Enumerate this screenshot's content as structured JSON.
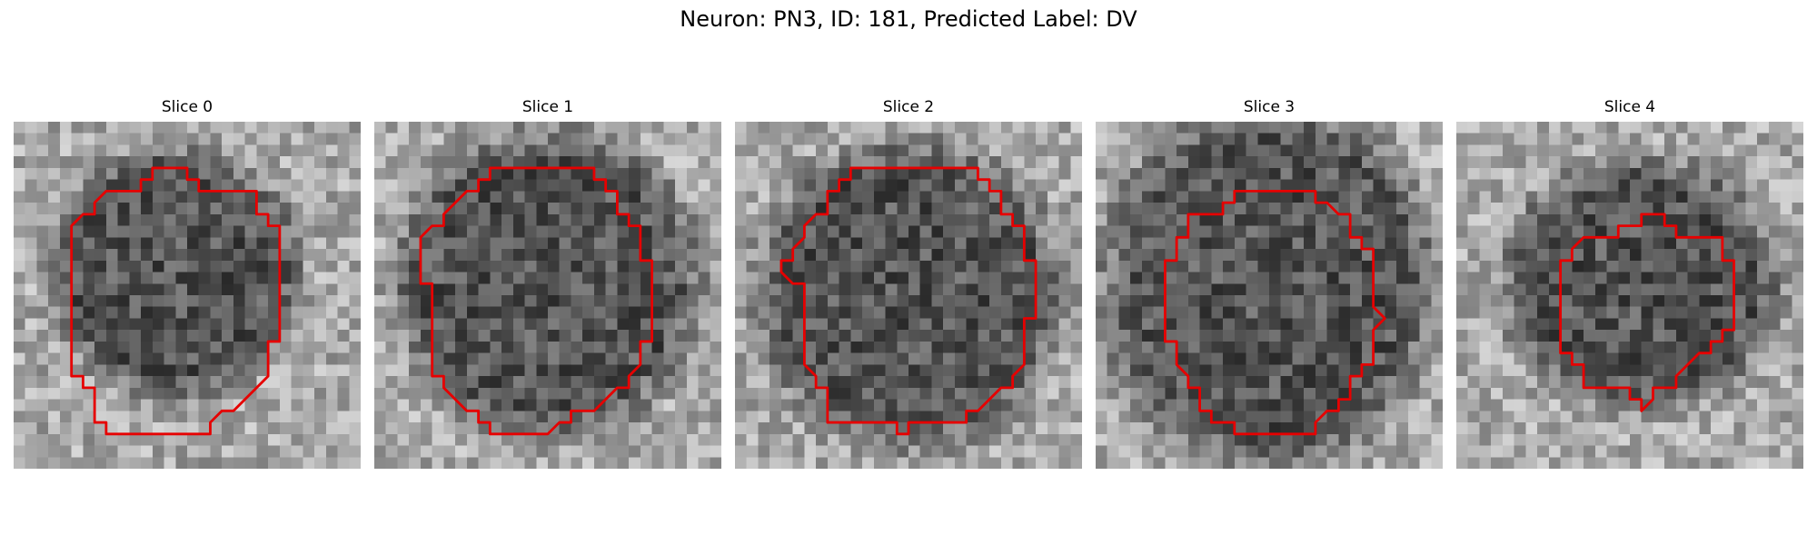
{
  "figure": {
    "title": "Neuron: PN3, ID: 181, Predicted Label: DV"
  },
  "outline_color": "#e60000",
  "panels": [
    {
      "title": "Slice 0",
      "grid_size": 30,
      "dark_blob": {
        "cx": 14,
        "cy": 13,
        "rx": 9,
        "ry": 9
      },
      "outline_points": [
        [
          12,
          4
        ],
        [
          15,
          4
        ],
        [
          15,
          5
        ],
        [
          16,
          5
        ],
        [
          16,
          6
        ],
        [
          21,
          6
        ],
        [
          21,
          8
        ],
        [
          22,
          8
        ],
        [
          22,
          9
        ],
        [
          23,
          9
        ],
        [
          23,
          19
        ],
        [
          22,
          19
        ],
        [
          22,
          22
        ],
        [
          19,
          25
        ],
        [
          18,
          25
        ],
        [
          17,
          26
        ],
        [
          17,
          27
        ],
        [
          8,
          27
        ],
        [
          8,
          26
        ],
        [
          7,
          26
        ],
        [
          7,
          23
        ],
        [
          6,
          23
        ],
        [
          6,
          22
        ],
        [
          5,
          22
        ],
        [
          5,
          9
        ],
        [
          6,
          8
        ],
        [
          7,
          8
        ],
        [
          7,
          7
        ],
        [
          8,
          6
        ],
        [
          11,
          6
        ],
        [
          11,
          5
        ],
        [
          12,
          5
        ]
      ]
    },
    {
      "title": "Slice 1",
      "grid_size": 30,
      "dark_blob": {
        "cx": 15,
        "cy": 14,
        "rx": 11,
        "ry": 11
      },
      "outline_points": [
        [
          10,
          4
        ],
        [
          19,
          4
        ],
        [
          19,
          5
        ],
        [
          20,
          5
        ],
        [
          20,
          6
        ],
        [
          21,
          6
        ],
        [
          21,
          8
        ],
        [
          22,
          8
        ],
        [
          22,
          9
        ],
        [
          23,
          9
        ],
        [
          23,
          12
        ],
        [
          24,
          12
        ],
        [
          24,
          19
        ],
        [
          23,
          19
        ],
        [
          23,
          21
        ],
        [
          22,
          22
        ],
        [
          22,
          23
        ],
        [
          21,
          23
        ],
        [
          19,
          25
        ],
        [
          17,
          25
        ],
        [
          17,
          26
        ],
        [
          16,
          26
        ],
        [
          15,
          27
        ],
        [
          10,
          27
        ],
        [
          10,
          26
        ],
        [
          9,
          26
        ],
        [
          9,
          25
        ],
        [
          8,
          25
        ],
        [
          7,
          24
        ],
        [
          6,
          23
        ],
        [
          6,
          22
        ],
        [
          5,
          22
        ],
        [
          5,
          14
        ],
        [
          4,
          14
        ],
        [
          4,
          10
        ],
        [
          5,
          9
        ],
        [
          6,
          9
        ],
        [
          6,
          8
        ],
        [
          7,
          7
        ],
        [
          8,
          6
        ],
        [
          9,
          6
        ],
        [
          9,
          5
        ],
        [
          10,
          5
        ]
      ]
    },
    {
      "title": "Slice 2",
      "grid_size": 30,
      "dark_blob": {
        "cx": 15,
        "cy": 15,
        "rx": 11,
        "ry": 11
      },
      "outline_points": [
        [
          10,
          4
        ],
        [
          21,
          4
        ],
        [
          21,
          5
        ],
        [
          22,
          5
        ],
        [
          22,
          6
        ],
        [
          23,
          6
        ],
        [
          23,
          8
        ],
        [
          24,
          8
        ],
        [
          24,
          9
        ],
        [
          25,
          9
        ],
        [
          25,
          12
        ],
        [
          26,
          12
        ],
        [
          26,
          17
        ],
        [
          25,
          17
        ],
        [
          25,
          21
        ],
        [
          24,
          22
        ],
        [
          24,
          23
        ],
        [
          23,
          23
        ],
        [
          21,
          25
        ],
        [
          20,
          25
        ],
        [
          20,
          26
        ],
        [
          15,
          26
        ],
        [
          15,
          27
        ],
        [
          14,
          27
        ],
        [
          14,
          26
        ],
        [
          8,
          26
        ],
        [
          8,
          23
        ],
        [
          7,
          23
        ],
        [
          7,
          22
        ],
        [
          6,
          21
        ],
        [
          6,
          14
        ],
        [
          5,
          14
        ],
        [
          4,
          13
        ],
        [
          4,
          12
        ],
        [
          5,
          12
        ],
        [
          5,
          11
        ],
        [
          6,
          10
        ],
        [
          6,
          9
        ],
        [
          7,
          8
        ],
        [
          8,
          8
        ],
        [
          8,
          6
        ],
        [
          9,
          6
        ],
        [
          9,
          5
        ],
        [
          10,
          5
        ]
      ]
    },
    {
      "title": "Slice 3",
      "grid_size": 30,
      "dark_blob": {
        "cx": 15,
        "cy": 14,
        "rx": 12,
        "ry": 13
      },
      "outline_points": [
        [
          12,
          6
        ],
        [
          19,
          6
        ],
        [
          19,
          7
        ],
        [
          20,
          7
        ],
        [
          21,
          8
        ],
        [
          22,
          8
        ],
        [
          22,
          10
        ],
        [
          23,
          10
        ],
        [
          23,
          11
        ],
        [
          24,
          11
        ],
        [
          24,
          16
        ],
        [
          25,
          17
        ],
        [
          24,
          18
        ],
        [
          24,
          21
        ],
        [
          23,
          21
        ],
        [
          23,
          22
        ],
        [
          22,
          22
        ],
        [
          22,
          24
        ],
        [
          21,
          24
        ],
        [
          21,
          25
        ],
        [
          20,
          25
        ],
        [
          19,
          26
        ],
        [
          19,
          27
        ],
        [
          12,
          27
        ],
        [
          12,
          26
        ],
        [
          10,
          26
        ],
        [
          10,
          25
        ],
        [
          9,
          25
        ],
        [
          9,
          23
        ],
        [
          8,
          23
        ],
        [
          8,
          22
        ],
        [
          7,
          21
        ],
        [
          7,
          19
        ],
        [
          6,
          19
        ],
        [
          6,
          12
        ],
        [
          7,
          12
        ],
        [
          7,
          10
        ],
        [
          8,
          10
        ],
        [
          8,
          8
        ],
        [
          11,
          8
        ],
        [
          11,
          7
        ],
        [
          12,
          7
        ]
      ]
    },
    {
      "title": "Slice 4",
      "grid_size": 30,
      "dark_blob": {
        "cx": 16,
        "cy": 14,
        "rx": 10,
        "ry": 9
      },
      "outline_points": [
        [
          16,
          8
        ],
        [
          18,
          8
        ],
        [
          18,
          9
        ],
        [
          19,
          9
        ],
        [
          19,
          10
        ],
        [
          23,
          10
        ],
        [
          23,
          12
        ],
        [
          24,
          12
        ],
        [
          24,
          13
        ],
        [
          24,
          18
        ],
        [
          23,
          18
        ],
        [
          23,
          19
        ],
        [
          22,
          19
        ],
        [
          22,
          20
        ],
        [
          21,
          20
        ],
        [
          20,
          21
        ],
        [
          19,
          22
        ],
        [
          19,
          23
        ],
        [
          17,
          23
        ],
        [
          17,
          24
        ],
        [
          16,
          25
        ],
        [
          16,
          24
        ],
        [
          15,
          24
        ],
        [
          15,
          23
        ],
        [
          11,
          23
        ],
        [
          11,
          21
        ],
        [
          10,
          21
        ],
        [
          10,
          20
        ],
        [
          10,
          20
        ],
        [
          9,
          20
        ],
        [
          9,
          12
        ],
        [
          10,
          12
        ],
        [
          10,
          11
        ],
        [
          11,
          10
        ],
        [
          14,
          10
        ],
        [
          14,
          9
        ],
        [
          16,
          9
        ]
      ]
    }
  ]
}
